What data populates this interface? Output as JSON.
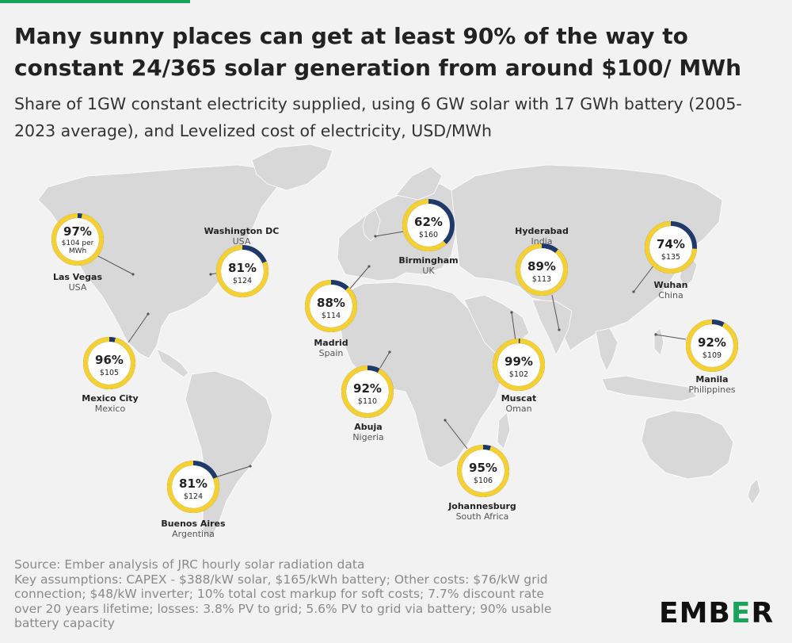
{
  "title": "Many sunny places can get at least 90% of the way to constant 24/365 solar generation from around $100/ MWh",
  "subtitle": "Share of 1GW constant electricity supplied, using 6 GW solar with 17 GWh battery (2005-2023 average), and Levelized cost of electricity, USD/MWh",
  "colors": {
    "share_ring": "#f5d033",
    "remainder_ring": "#1f3a6a",
    "land": "#d8d8d8",
    "background": "#f2f2f2",
    "brand_green": "#19a45a"
  },
  "cities": [
    {
      "name": "Las Vegas",
      "country": "USA",
      "share": 97,
      "share_label": "97%",
      "cost_lines": [
        "$104 per",
        "MWh"
      ]
    },
    {
      "name": "Washington DC",
      "country": "USA",
      "share": 81,
      "share_label": "81%",
      "cost_lines": [
        "$124"
      ]
    },
    {
      "name": "Mexico City",
      "country": "Mexico",
      "share": 96,
      "share_label": "96%",
      "cost_lines": [
        "$105"
      ]
    },
    {
      "name": "Buenos Aires",
      "country": "Argentina",
      "share": 81,
      "share_label": "81%",
      "cost_lines": [
        "$124"
      ]
    },
    {
      "name": "Madrid",
      "country": "Spain",
      "share": 88,
      "share_label": "88%",
      "cost_lines": [
        "$114"
      ]
    },
    {
      "name": "Birmingham",
      "country": "UK",
      "share": 62,
      "share_label": "62%",
      "cost_lines": [
        "$160"
      ]
    },
    {
      "name": "Abuja",
      "country": "Nigeria",
      "share": 92,
      "share_label": "92%",
      "cost_lines": [
        "$110"
      ]
    },
    {
      "name": "Johannesburg",
      "country": "South Africa",
      "share": 95,
      "share_label": "95%",
      "cost_lines": [
        "$106"
      ]
    },
    {
      "name": "Muscat",
      "country": "Oman",
      "share": 99,
      "share_label": "99%",
      "cost_lines": [
        "$102"
      ]
    },
    {
      "name": "Hyderabad",
      "country": "India",
      "share": 89,
      "share_label": "89%",
      "cost_lines": [
        "$113"
      ]
    },
    {
      "name": "Wuhan",
      "country": "China",
      "share": 74,
      "share_label": "74%",
      "cost_lines": [
        "$135"
      ]
    },
    {
      "name": "Manila",
      "country": "Philippines",
      "share": 92,
      "share_label": "92%",
      "cost_lines": [
        "$109"
      ]
    }
  ],
  "footer": {
    "source": "Source: Ember analysis of JRC hourly solar radiation data",
    "assumptions": [
      "Key assumptions: CAPEX - $388/kW solar, $165/kWh battery; Other costs: $76/kW grid",
      "connection; $48/kW inverter; 10% total cost markup for soft costs; 7.7% discount rate",
      "over 20 years lifetime; losses: 3.8% PV to grid; 5.6% PV to grid via battery; 90% usable",
      "battery capacity"
    ]
  },
  "logo": {
    "part1": "EMB",
    "part2": "E",
    "part3": "R"
  }
}
